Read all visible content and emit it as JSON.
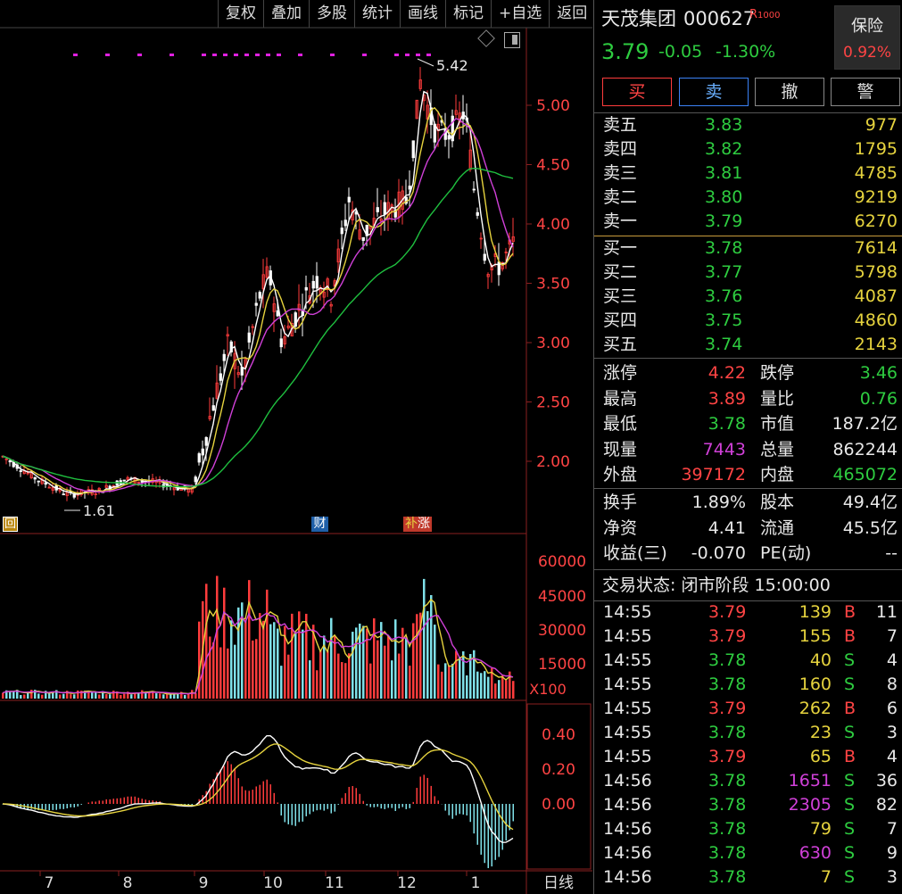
{
  "toolbar": [
    "复权",
    "叠加",
    "多股",
    "统计",
    "画线",
    "标记",
    "+自选",
    "返回"
  ],
  "chart": {
    "price_ticks": [
      "5.00",
      "4.50",
      "4.00",
      "3.50",
      "3.00",
      "2.50",
      "2.00"
    ],
    "vol_ticks": [
      "60000",
      "45000",
      "30000",
      "15000"
    ],
    "vol_unit": "X100",
    "macd_ticks": [
      "0.40",
      "0.20",
      "0.00"
    ],
    "x_ticks": [
      "7",
      "8",
      "9",
      "10",
      "11",
      "12",
      "1"
    ],
    "period_label": "日线",
    "high_label": "5.42",
    "low_label": "1.61",
    "markers": {
      "hui": "回",
      "cai": "财",
      "zhang": "涨"
    },
    "colors": {
      "up": "#ff3c3c",
      "down": "#ffffff",
      "ma5": "#ffffff",
      "ma10": "#e6d33e",
      "ma20": "#d040d8",
      "ma60": "#1fbf3f"
    }
  },
  "quote": {
    "name": "天茂集团",
    "code": "000627",
    "tag": "R",
    "price": "3.79",
    "change": "-0.05",
    "pct": "-1.30%",
    "baoxian_label": "保险",
    "baoxian_pct": "0.92%"
  },
  "buttons": {
    "buy": "买",
    "sell": "卖",
    "cancel": "撤",
    "alert": "警"
  },
  "asks": [
    {
      "label": "卖五",
      "price": "3.83",
      "vol": "977"
    },
    {
      "label": "卖四",
      "price": "3.82",
      "vol": "1795"
    },
    {
      "label": "卖三",
      "price": "3.81",
      "vol": "4785"
    },
    {
      "label": "卖二",
      "price": "3.80",
      "vol": "9219"
    },
    {
      "label": "卖一",
      "price": "3.79",
      "vol": "6270"
    }
  ],
  "bids": [
    {
      "label": "买一",
      "price": "3.78",
      "vol": "7614"
    },
    {
      "label": "买二",
      "price": "3.77",
      "vol": "5798"
    },
    {
      "label": "买三",
      "price": "3.76",
      "vol": "4087"
    },
    {
      "label": "买四",
      "price": "3.75",
      "vol": "4860"
    },
    {
      "label": "买五",
      "price": "3.74",
      "vol": "2143"
    }
  ],
  "stats": [
    {
      "l1": "涨停",
      "v1": "4.22",
      "c1": "red",
      "l2": "跌停",
      "v2": "3.46",
      "c2": "green"
    },
    {
      "l1": "最高",
      "v1": "3.89",
      "c1": "red",
      "l2": "量比",
      "v2": "0.76",
      "c2": "green"
    },
    {
      "l1": "最低",
      "v1": "3.78",
      "c1": "green",
      "l2": "市值",
      "v2": "187.2亿",
      "c2": "white"
    },
    {
      "l1": "现量",
      "v1": "7443",
      "c1": "purple",
      "l2": "总量",
      "v2": "862244",
      "c2": "white"
    },
    {
      "l1": "外盘",
      "v1": "397172",
      "c1": "red",
      "l2": "内盘",
      "v2": "465072",
      "c2": "green"
    }
  ],
  "fund": [
    {
      "l1": "换手",
      "v1": "1.89%",
      "l2": "股本",
      "v2": "49.4亿"
    },
    {
      "l1": "净资",
      "v1": "4.41",
      "l2": "流通",
      "v2": "45.5亿"
    },
    {
      "l1": "收益(三)",
      "v1": "-0.070",
      "l2": "PE(动)",
      "v2": "--"
    }
  ],
  "trade_status": "交易状态: 闭市阶段 15:00:00",
  "ticks": [
    {
      "t": "14:55",
      "p": "3.79",
      "v": "139",
      "s": "B",
      "n": "11",
      "vc": "yellow"
    },
    {
      "t": "14:55",
      "p": "3.79",
      "v": "155",
      "s": "B",
      "n": "7",
      "vc": "yellow"
    },
    {
      "t": "14:55",
      "p": "3.78",
      "v": "40",
      "s": "S",
      "n": "4",
      "vc": "yellow"
    },
    {
      "t": "14:55",
      "p": "3.78",
      "v": "160",
      "s": "S",
      "n": "8",
      "vc": "yellow"
    },
    {
      "t": "14:55",
      "p": "3.79",
      "v": "262",
      "s": "B",
      "n": "6",
      "vc": "yellow"
    },
    {
      "t": "14:55",
      "p": "3.78",
      "v": "23",
      "s": "S",
      "n": "3",
      "vc": "yellow"
    },
    {
      "t": "14:55",
      "p": "3.79",
      "v": "65",
      "s": "B",
      "n": "4",
      "vc": "yellow"
    },
    {
      "t": "14:56",
      "p": "3.78",
      "v": "1651",
      "s": "S",
      "n": "36",
      "vc": "purple"
    },
    {
      "t": "14:56",
      "p": "3.78",
      "v": "2305",
      "s": "S",
      "n": "82",
      "vc": "purple"
    },
    {
      "t": "14:56",
      "p": "3.78",
      "v": "79",
      "s": "S",
      "n": "7",
      "vc": "yellow"
    },
    {
      "t": "14:56",
      "p": "3.78",
      "v": "630",
      "s": "S",
      "n": "9",
      "vc": "purple"
    },
    {
      "t": "14:56",
      "p": "3.78",
      "v": "7",
      "s": "S",
      "n": "3",
      "vc": "yellow"
    }
  ]
}
